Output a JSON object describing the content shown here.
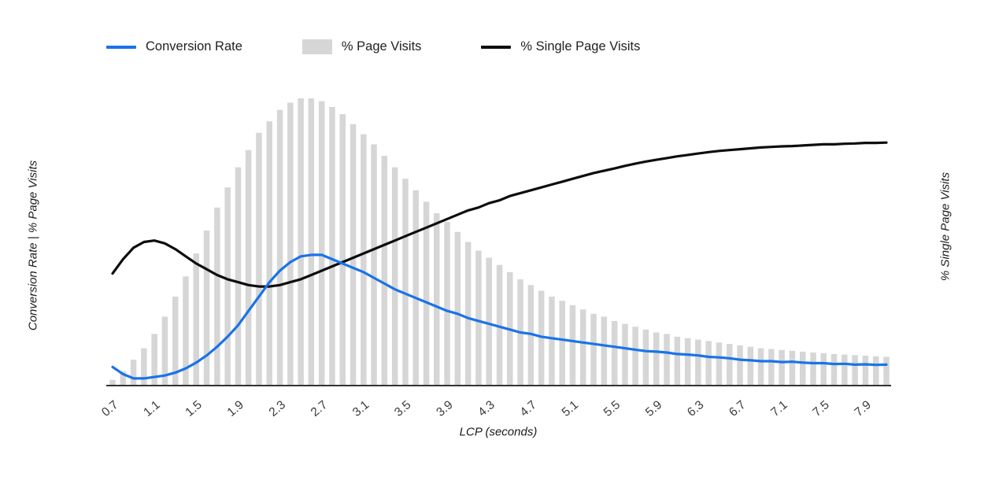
{
  "chart_data": {
    "type": "combo",
    "title": "",
    "xlabel": "LCP (seconds)",
    "ylabel_left": "Conversion Rate | % Page Visits",
    "ylabel_right": "% Single Page Visits",
    "grid": false,
    "legend_position": "top",
    "ylim": [
      0,
      100
    ],
    "x_tick_labels": [
      "0.7",
      "1.1",
      "1.5",
      "1.9",
      "2.3",
      "2.7",
      "3.1",
      "3.5",
      "3.9",
      "4.3",
      "4.7",
      "5.1",
      "5.5",
      "5.9",
      "6.3",
      "6.7",
      "7.1",
      "7.5",
      "7.9"
    ],
    "x": [
      0.7,
      0.8,
      0.9,
      1.0,
      1.1,
      1.2,
      1.3,
      1.4,
      1.5,
      1.6,
      1.7,
      1.8,
      1.9,
      2.0,
      2.1,
      2.2,
      2.3,
      2.4,
      2.5,
      2.6,
      2.7,
      2.8,
      2.9,
      3.0,
      3.1,
      3.2,
      3.3,
      3.4,
      3.5,
      3.6,
      3.7,
      3.8,
      3.9,
      4.0,
      4.1,
      4.2,
      4.3,
      4.4,
      4.5,
      4.6,
      4.7,
      4.8,
      4.9,
      5.0,
      5.1,
      5.2,
      5.3,
      5.4,
      5.5,
      5.6,
      5.7,
      5.8,
      5.9,
      6.0,
      6.1,
      6.2,
      6.3,
      6.4,
      6.5,
      6.6,
      6.7,
      6.8,
      6.9,
      7.0,
      7.1,
      7.2,
      7.3,
      7.4,
      7.5,
      7.6,
      7.7,
      7.8,
      7.9,
      8.0,
      8.1
    ],
    "series": [
      {
        "name": "Conversion Rate",
        "type": "line",
        "axis": "left",
        "color": "#1a73e8",
        "values": [
          6.5,
          4,
          2.5,
          2.5,
          3,
          3.5,
          4.5,
          6,
          8,
          10.5,
          13.5,
          17,
          21,
          26,
          31,
          36,
          40,
          43,
          45,
          45.5,
          45.5,
          44,
          42.5,
          41,
          39.5,
          37.5,
          35.5,
          33.5,
          32,
          30.5,
          29,
          27.5,
          26,
          25,
          23.5,
          22.5,
          21.5,
          20.5,
          19.5,
          18.5,
          18,
          17,
          16.5,
          16,
          15.5,
          15,
          14.5,
          14,
          13.5,
          13,
          12.5,
          12,
          11.8,
          11.5,
          11,
          10.8,
          10.5,
          10,
          9.8,
          9.5,
          9,
          8.8,
          8.5,
          8.5,
          8.2,
          8.3,
          8,
          7.8,
          7.8,
          7.5,
          7.6,
          7.3,
          7.4,
          7.2,
          7.3
        ]
      },
      {
        "name": "% Page Visits",
        "type": "bar",
        "axis": "left",
        "color": "#d6d6d6",
        "values": [
          2,
          5,
          9,
          13,
          18,
          24,
          31,
          38,
          46,
          54,
          62,
          69,
          76,
          82,
          88,
          92,
          96,
          98.5,
          100,
          100,
          99,
          97,
          94.5,
          91,
          87.5,
          84,
          80,
          76,
          72,
          68,
          64,
          60,
          57,
          53.5,
          50,
          47,
          44.5,
          42,
          39.5,
          37,
          35,
          33,
          31,
          29.5,
          28,
          26.5,
          25,
          24,
          22.5,
          21.5,
          20.5,
          19.5,
          18.5,
          18,
          17,
          16.5,
          16,
          15.5,
          15,
          14.5,
          14,
          13.5,
          13,
          12.7,
          12.4,
          12.1,
          11.8,
          11.5,
          11.3,
          11,
          10.8,
          10.6,
          10.4,
          10.2,
          10
        ]
      },
      {
        "name": "% Single Page Visits",
        "type": "line",
        "axis": "right",
        "color": "#0d0d0d",
        "values": [
          39,
          44,
          48,
          50,
          50.5,
          49.5,
          47.5,
          45,
          42.5,
          40.5,
          38.5,
          37,
          36,
          35,
          34.5,
          34.5,
          35,
          36,
          37,
          38.5,
          40,
          41.5,
          43,
          44.5,
          46,
          47.5,
          49,
          50.5,
          52,
          53.5,
          55,
          56.5,
          58,
          59.5,
          61,
          62,
          63.5,
          64.5,
          66,
          67,
          68,
          69,
          70,
          71,
          72,
          73,
          74,
          74.8,
          75.6,
          76.5,
          77.3,
          78,
          78.6,
          79.2,
          79.8,
          80.3,
          80.8,
          81.3,
          81.7,
          82,
          82.3,
          82.6,
          82.9,
          83.1,
          83.3,
          83.4,
          83.6,
          83.8,
          84,
          84,
          84.2,
          84.3,
          84.5,
          84.5,
          84.6
        ]
      }
    ],
    "axis_color": "#333333",
    "tick_label_color": "#3c3c3c"
  }
}
